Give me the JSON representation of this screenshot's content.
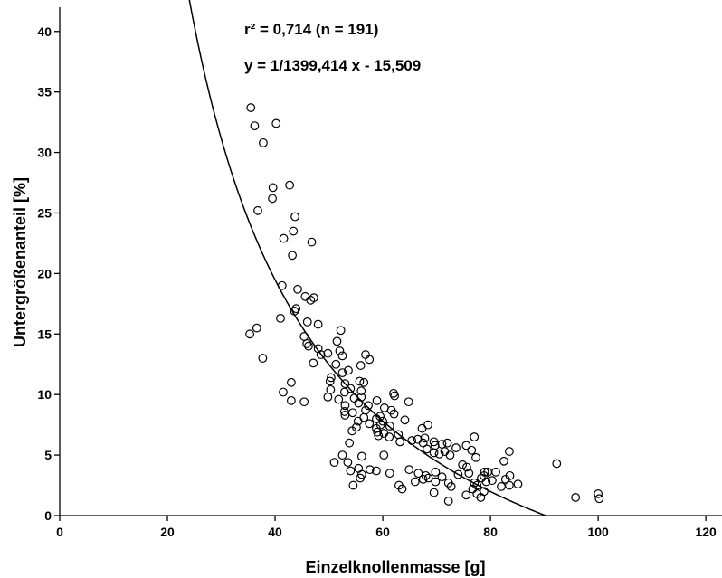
{
  "chart_data": {
    "type": "scatter",
    "xlabel": "Einzelknollenmasse [g]",
    "ylabel": "Untergrößenanteil [%]",
    "xlim": [
      0,
      123
    ],
    "ylim": [
      0,
      42
    ],
    "xticks": [
      0,
      20,
      40,
      60,
      80,
      100,
      120
    ],
    "yticks": [
      0,
      5,
      10,
      15,
      20,
      25,
      30,
      35,
      40
    ],
    "annotations": [
      "r² = 0,714 (n = 191)",
      "y = 1/1399,414 x - 15,509"
    ],
    "fit": {
      "type": "reciprocal",
      "a": 1399.414,
      "b": -15.509
    },
    "points": [
      [
        35.5,
        33.7
      ],
      [
        36.2,
        32.2
      ],
      [
        40.2,
        32.4
      ],
      [
        37.8,
        30.8
      ],
      [
        39.6,
        27.1
      ],
      [
        42.7,
        27.3
      ],
      [
        39.5,
        26.2
      ],
      [
        36.8,
        25.2
      ],
      [
        43.7,
        24.7
      ],
      [
        43.4,
        23.5
      ],
      [
        41.6,
        22.9
      ],
      [
        46.8,
        22.6
      ],
      [
        43.2,
        21.5
      ],
      [
        41.3,
        19.0
      ],
      [
        44.2,
        18.7
      ],
      [
        45.6,
        18.1
      ],
      [
        47.2,
        18.0
      ],
      [
        46.6,
        17.8
      ],
      [
        43.9,
        17.1
      ],
      [
        43.6,
        16.9
      ],
      [
        41.0,
        16.3
      ],
      [
        46.0,
        16.0
      ],
      [
        48.0,
        15.8
      ],
      [
        36.6,
        15.5
      ],
      [
        35.3,
        15.0
      ],
      [
        52.2,
        15.3
      ],
      [
        45.4,
        14.8
      ],
      [
        51.5,
        14.4
      ],
      [
        46.2,
        14.0
      ],
      [
        45.9,
        14.2
      ],
      [
        48.0,
        13.8
      ],
      [
        52.0,
        13.6
      ],
      [
        49.8,
        13.4
      ],
      [
        48.5,
        13.3
      ],
      [
        52.5,
        13.2
      ],
      [
        56.8,
        13.3
      ],
      [
        37.7,
        13.0
      ],
      [
        57.5,
        12.9
      ],
      [
        51.3,
        12.5
      ],
      [
        47.1,
        12.6
      ],
      [
        53.6,
        12.0
      ],
      [
        55.9,
        12.4
      ],
      [
        52.5,
        11.8
      ],
      [
        50.4,
        11.4
      ],
      [
        50.2,
        11.1
      ],
      [
        55.7,
        11.1
      ],
      [
        43.0,
        11.0
      ],
      [
        53.0,
        10.9
      ],
      [
        56.5,
        11.0
      ],
      [
        54.0,
        10.5
      ],
      [
        52.9,
        10.2
      ],
      [
        56.0,
        10.3
      ],
      [
        50.3,
        10.4
      ],
      [
        41.5,
        10.2
      ],
      [
        62.0,
        10.1
      ],
      [
        62.2,
        9.9
      ],
      [
        43.0,
        9.5
      ],
      [
        51.8,
        9.6
      ],
      [
        54.7,
        9.7
      ],
      [
        56.0,
        9.8
      ],
      [
        58.9,
        9.5
      ],
      [
        64.8,
        9.4
      ],
      [
        45.4,
        9.4
      ],
      [
        49.8,
        9.8
      ],
      [
        53.0,
        9.1
      ],
      [
        55.5,
        9.3
      ],
      [
        57.3,
        9.1
      ],
      [
        60.3,
        8.9
      ],
      [
        61.6,
        8.7
      ],
      [
        52.9,
        8.6
      ],
      [
        54.4,
        8.5
      ],
      [
        56.8,
        8.7
      ],
      [
        53.0,
        8.3
      ],
      [
        59.5,
        8.2
      ],
      [
        62.1,
        8.4
      ],
      [
        56.5,
        8.1
      ],
      [
        58.8,
        8.0
      ],
      [
        60.0,
        7.8
      ],
      [
        64.1,
        7.9
      ],
      [
        55.4,
        7.8
      ],
      [
        57.5,
        7.6
      ],
      [
        59.6,
        7.5
      ],
      [
        61.3,
        7.4
      ],
      [
        68.4,
        7.5
      ],
      [
        55.1,
        7.3
      ],
      [
        58.8,
        7.2
      ],
      [
        67.3,
        7.2
      ],
      [
        54.3,
        7.0
      ],
      [
        59.0,
        6.9
      ],
      [
        60.2,
        6.8
      ],
      [
        62.9,
        6.7
      ],
      [
        59.2,
        6.6
      ],
      [
        61.2,
        6.5
      ],
      [
        77.0,
        6.5
      ],
      [
        66.5,
        6.3
      ],
      [
        67.8,
        6.4
      ],
      [
        65.4,
        6.2
      ],
      [
        69.5,
        6.1
      ],
      [
        63.2,
        6.1
      ],
      [
        67.5,
        6.0
      ],
      [
        72.0,
        6.0
      ],
      [
        71.0,
        5.9
      ],
      [
        53.8,
        6.0
      ],
      [
        69.7,
        5.8
      ],
      [
        75.5,
        5.8
      ],
      [
        73.6,
        5.6
      ],
      [
        68.2,
        5.5
      ],
      [
        76.5,
        5.4
      ],
      [
        71.5,
        5.3
      ],
      [
        69.5,
        5.2
      ],
      [
        83.5,
        5.3
      ],
      [
        70.5,
        5.1
      ],
      [
        72.5,
        5.0
      ],
      [
        60.2,
        5.0
      ],
      [
        52.5,
        5.0
      ],
      [
        56.1,
        4.9
      ],
      [
        77.3,
        4.8
      ],
      [
        82.5,
        4.5
      ],
      [
        92.3,
        4.3
      ],
      [
        51.0,
        4.4
      ],
      [
        53.5,
        4.4
      ],
      [
        74.8,
        4.2
      ],
      [
        75.6,
        4.0
      ],
      [
        55.5,
        3.9
      ],
      [
        57.6,
        3.8
      ],
      [
        54.0,
        3.7
      ],
      [
        64.9,
        3.8
      ],
      [
        58.8,
        3.7
      ],
      [
        61.3,
        3.5
      ],
      [
        69.8,
        3.6
      ],
      [
        76.0,
        3.5
      ],
      [
        78.9,
        3.6
      ],
      [
        79.5,
        3.6
      ],
      [
        81.0,
        3.6
      ],
      [
        56.1,
        3.4
      ],
      [
        66.6,
        3.5
      ],
      [
        68.0,
        3.3
      ],
      [
        74.0,
        3.4
      ],
      [
        78.8,
        3.3
      ],
      [
        83.6,
        3.3
      ],
      [
        55.8,
        3.1
      ],
      [
        67.5,
        3.0
      ],
      [
        68.5,
        3.1
      ],
      [
        71.0,
        3.2
      ],
      [
        78.3,
        3.1
      ],
      [
        80.3,
        2.9
      ],
      [
        82.8,
        3.0
      ],
      [
        66.0,
        2.8
      ],
      [
        69.8,
        2.8
      ],
      [
        72.2,
        2.7
      ],
      [
        77.0,
        2.7
      ],
      [
        79.2,
        2.8
      ],
      [
        85.1,
        2.6
      ],
      [
        54.5,
        2.5
      ],
      [
        63.0,
        2.5
      ],
      [
        72.7,
        2.4
      ],
      [
        77.5,
        2.5
      ],
      [
        82.0,
        2.4
      ],
      [
        83.5,
        2.5
      ],
      [
        63.6,
        2.2
      ],
      [
        76.7,
        2.2
      ],
      [
        78.8,
        2.0
      ],
      [
        69.5,
        1.9
      ],
      [
        75.5,
        1.7
      ],
      [
        77.5,
        1.8
      ],
      [
        100.0,
        1.8
      ],
      [
        95.8,
        1.5
      ],
      [
        100.2,
        1.4
      ],
      [
        78.2,
        1.5
      ],
      [
        72.2,
        1.2
      ]
    ]
  }
}
